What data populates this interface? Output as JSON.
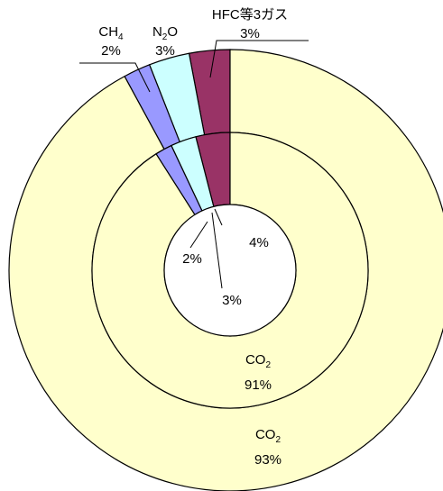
{
  "chart_data": {
    "type": "pie",
    "variant": "doughnut",
    "start": "top",
    "direction": "counterclockwise",
    "rings": [
      {
        "name": "outer",
        "slices": [
          {
            "key": "hfc",
            "value": 3,
            "color": "#993366"
          },
          {
            "key": "n2o",
            "value": 3,
            "color": "#ccffff"
          },
          {
            "key": "ch4",
            "value": 2,
            "color": "#9999ff"
          },
          {
            "key": "co2",
            "value": 93,
            "color": "#ffffcc"
          }
        ]
      },
      {
        "name": "inner",
        "slices": [
          {
            "key": "hfc",
            "value": 4,
            "color": "#993366"
          },
          {
            "key": "n2o",
            "value": 3,
            "color": "#ccffff"
          },
          {
            "key": "ch4",
            "value": 2,
            "color": "#9999ff"
          },
          {
            "key": "co2",
            "value": 91,
            "color": "#ffffcc"
          }
        ]
      }
    ]
  },
  "labels": {
    "outer_ch4": {
      "pre": "CH",
      "sub": "4",
      "post": "",
      "pct": "2%"
    },
    "outer_n2o": {
      "pre": "N",
      "sub": "2",
      "post": "O",
      "pct": "3%"
    },
    "outer_hfc": {
      "pre": "HFC等3ガス",
      "sub": "",
      "post": "",
      "pct": "3%"
    },
    "outer_co2": {
      "pre": "CO",
      "sub": "2",
      "post": "",
      "pct": "93%"
    },
    "inner_co2": {
      "pre": "CO",
      "sub": "2",
      "post": "",
      "pct": "91%"
    },
    "inner_hfc": {
      "pct": "4%"
    },
    "inner_ch4": {
      "pct": "2%"
    },
    "inner_n2o": {
      "pct": "3%"
    }
  }
}
